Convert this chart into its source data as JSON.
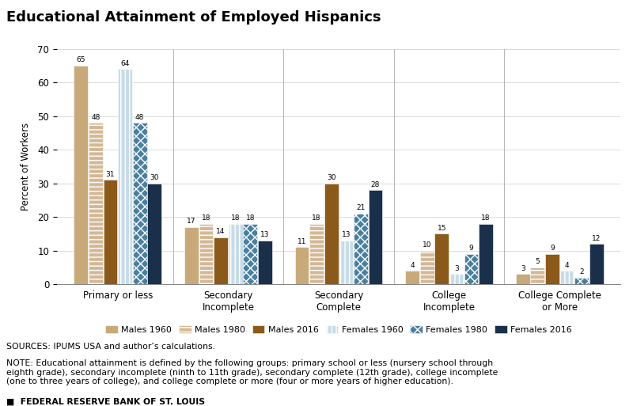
{
  "title": "Educational Attainment of Employed Hispanics",
  "ylabel": "Percent of Workers",
  "categories": [
    "Primary or less",
    "Secondary\nIncomplete",
    "Secondary\nComplete",
    "College\nIncomplete",
    "College Complete\nor More"
  ],
  "series": [
    {
      "label": "Males 1960",
      "values": [
        65,
        17,
        11,
        4,
        3
      ],
      "color": "#c8a97a",
      "hatch": ""
    },
    {
      "label": "Males 1980",
      "values": [
        48,
        18,
        18,
        10,
        5
      ],
      "color": "#d4b896",
      "hatch": "==="
    },
    {
      "label": "Males 2016",
      "values": [
        31,
        14,
        30,
        15,
        9
      ],
      "color": "#8B5A1A",
      "hatch": ""
    },
    {
      "label": "Females 1960",
      "values": [
        64,
        18,
        13,
        3,
        4
      ],
      "color": "#c8dce8",
      "hatch": "|||"
    },
    {
      "label": "Females 1980",
      "values": [
        48,
        18,
        21,
        9,
        2
      ],
      "color": "#4a7fa0",
      "hatch": "xxx"
    },
    {
      "label": "Females 2016",
      "values": [
        30,
        13,
        28,
        18,
        12
      ],
      "color": "#1a304a",
      "hatch": ""
    }
  ],
  "ylim": [
    0,
    70
  ],
  "yticks": [
    0,
    10,
    20,
    30,
    40,
    50,
    60,
    70
  ],
  "sources_text": "SOURCES: IPUMS USA and author’s calculations.",
  "note_text": "NOTE: Educational attainment is defined by the following groups: primary school or less (nursery school through\neighth grade), secondary incomplete (ninth to 11th grade), secondary complete (12th grade), college incomplete\n(one to three years of college), and college complete or more (four or more years of higher education).",
  "footer_text": "■  FEDERAL RESERVE BANK OF ST. LOUIS",
  "background_color": "#ffffff"
}
